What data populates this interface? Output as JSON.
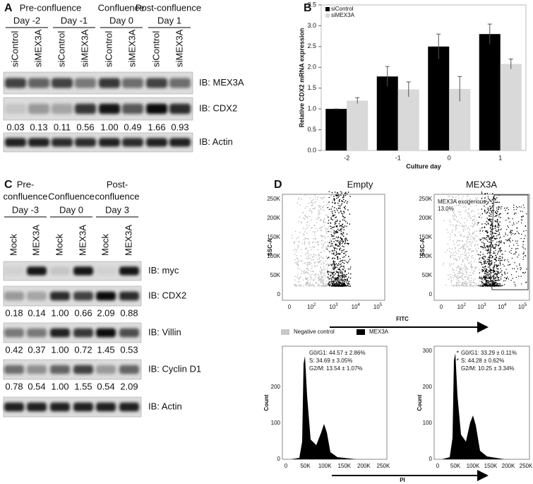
{
  "panel_a": {
    "letter": "A",
    "groups": [
      {
        "title": "Pre-confluence",
        "days": [
          "Day -2",
          "Day -1"
        ]
      },
      {
        "title": "Confluence",
        "days": [
          "Day 0"
        ]
      },
      {
        "title": "Post-confluence",
        "days": [
          "Day 1"
        ]
      }
    ],
    "lanes": [
      "siControl",
      "siMEX3A",
      "siControl",
      "siMEX3A",
      "siControl",
      "siMEX3A",
      "siControl",
      "siMEX3A"
    ],
    "blots": [
      {
        "label": "IB: MEX3A"
      },
      {
        "label": "IB: CDX2",
        "quant": [
          "0.03",
          "0.13",
          "0.11",
          "0.56",
          "1.00",
          "0.49",
          "1.66",
          "0.93"
        ]
      },
      {
        "label": "IB: Actin"
      }
    ]
  },
  "chart_data": {
    "type": "bar",
    "letter": "B",
    "ylabel": "Relative CDX2 mRNA expression",
    "xlabel": "Culture day",
    "categories": [
      "-2",
      "-1",
      "0",
      "1"
    ],
    "series": [
      {
        "name": "siControl",
        "color": "#000000",
        "values": [
          1.0,
          1.78,
          2.5,
          2.8
        ],
        "errors": [
          0,
          0.24,
          0.3,
          0.24
        ]
      },
      {
        "name": "siMEX3A",
        "color": "#d9d9d9",
        "values": [
          1.2,
          1.47,
          1.48,
          2.08
        ],
        "errors": [
          0.07,
          0.18,
          0.3,
          0.12
        ]
      }
    ],
    "ylim": [
      0,
      3.5
    ],
    "yticks": [
      {
        "value": 0,
        "label": "0.0"
      },
      {
        "value": 0.5,
        "label": "0.5"
      },
      {
        "value": 1,
        "label": "1.0"
      },
      {
        "value": 1.5,
        "label": "1.5"
      },
      {
        "value": 2,
        "label": "2.0"
      },
      {
        "value": 2.5,
        "label": "2.5"
      },
      {
        "value": 3,
        "label": "3.0"
      },
      {
        "value": 3.5,
        "label": "3.5"
      }
    ],
    "legend": "top-left"
  },
  "panel_c": {
    "letter": "C",
    "groups": [
      {
        "title": [
          "Pre-",
          "confluence"
        ],
        "day": "Day -3"
      },
      {
        "title": [
          "Confluence"
        ],
        "day": "Day 0"
      },
      {
        "title": [
          "Post-",
          "confluence"
        ],
        "day": "Day 3"
      }
    ],
    "lanes": [
      "Mock",
      "MEX3A",
      "Mock",
      "MEX3A",
      "Mock",
      "MEX3A"
    ],
    "blots": [
      {
        "label": "IB: myc"
      },
      {
        "label": "IB: CDX2",
        "quant": [
          "0.18",
          "0.14",
          "1.00",
          "0.66",
          "2.09",
          "0.88"
        ]
      },
      {
        "label": "IB: Villin",
        "quant": [
          "0.42",
          "0.37",
          "1.00",
          "0.72",
          "1.45",
          "0.53"
        ]
      },
      {
        "label": "IB: Cyclin D1",
        "quant": [
          "0.78",
          "0.54",
          "1.00",
          "1.55",
          "0.54",
          "2.09"
        ]
      },
      {
        "label": "IB: Actin"
      }
    ]
  },
  "panel_d": {
    "letter": "D",
    "scatter": [
      {
        "title": "Empty",
        "ylabel": "SSC-A"
      },
      {
        "title": "MEX3A",
        "ylabel": "SSC-A",
        "gate": [
          "MEX3A exogenous",
          "13,0%"
        ]
      }
    ],
    "scatter_yticks": [
      "0",
      "50K",
      "100K",
      "150K",
      "200K",
      "250K"
    ],
    "scatter_xticks": [
      {
        "text": "0"
      },
      {
        "text": "10",
        "sup": "2"
      },
      {
        "text": "10",
        "sup": "3"
      },
      {
        "text": "10",
        "sup": "4"
      },
      {
        "text": "10",
        "sup": "5"
      }
    ],
    "scatter_xlabel": "FITC",
    "legend": [
      "Negative control",
      "MEX3A"
    ],
    "histograms": [
      {
        "ylabel": "Count",
        "yticks": [
          "0",
          "100",
          "200"
        ],
        "stats": [
          {
            "text": "G0/G1: 44.57 ± 2.86%"
          },
          {
            "text": "S: 34.69 ± 3.05%"
          },
          {
            "text": "G2/M: 13.54 ± 1.07%"
          }
        ]
      },
      {
        "ylabel": "Count",
        "yticks": [
          "0",
          "100",
          "200",
          "300"
        ],
        "stats": [
          {
            "mark": "*",
            "text": "G0/G1: 33.29 ± 0.11%"
          },
          {
            "mark": "*",
            "text": "S: 44.28 ± 0.62%"
          },
          {
            "text": "G2/M: 10.25 ± 3.34%"
          }
        ]
      }
    ],
    "hist_xticks": [
      "0",
      "50K",
      "100K",
      "150K",
      "200K",
      "250K"
    ],
    "hist_xlabel": "PI"
  }
}
